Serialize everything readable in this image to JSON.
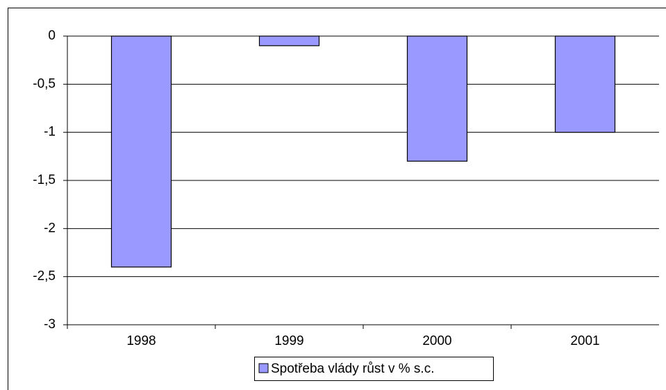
{
  "chart_data": {
    "type": "bar",
    "categories": [
      "1998",
      "1999",
      "2000",
      "2001"
    ],
    "series": [
      {
        "name": "Spotřeba vlády růst v % s.c.",
        "color": "#9999ff",
        "values": [
          -2.4,
          -0.1,
          -1.3,
          -1.0
        ]
      }
    ],
    "ylim": [
      -3,
      0
    ],
    "yticks": [
      0,
      {
        "value": -0.5,
        "label": "-0,5"
      },
      -1,
      {
        "value": -1.5,
        "label": "-1,5"
      },
      -2,
      {
        "value": -2.5,
        "label": "-2,5"
      },
      -3
    ],
    "grid": true
  }
}
